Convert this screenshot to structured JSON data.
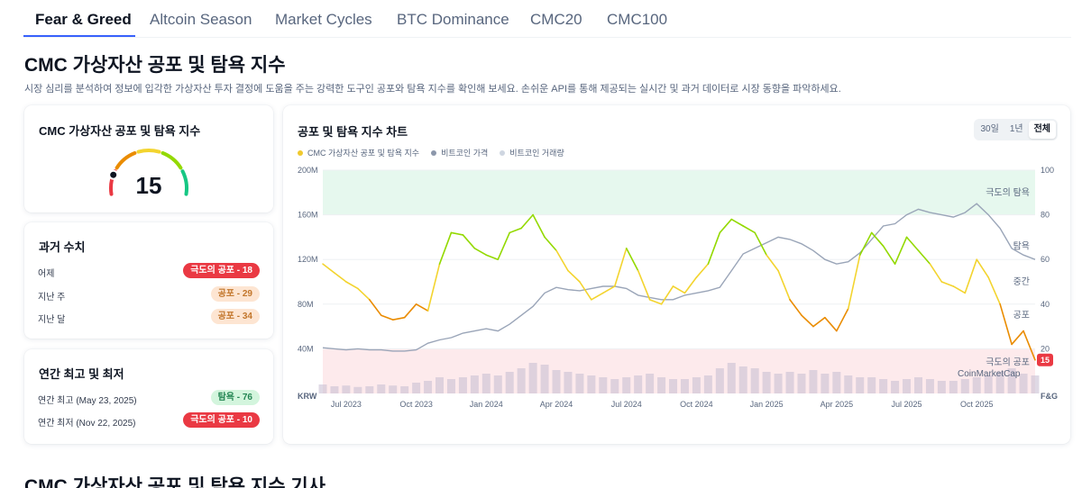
{
  "tabs": [
    "Fear & Greed",
    "Altcoin Season",
    "Market Cycles",
    "BTC Dominance",
    "CMC20",
    "CMC100"
  ],
  "page_title": "CMC 가상자산 공포 및 탐욕 지수",
  "page_description": "시장 심리를 분석하여 정보에 입각한 가상자산 투자 결정에 도움을 주는 강력한 도구인 공포와 탐욕 지수를 확인해 보세요. 손쉬운 API를 통해 제공되는 실시간 및 과거 데이터로 시장 동향을 파악하세요.",
  "gauge_card": {
    "title": "CMC 가상자산 공포 및 탐욕 지수",
    "value": "15",
    "level": 15
  },
  "history_card": {
    "title": "과거 수치",
    "rows": [
      {
        "label": "어제",
        "badge": "극도의 공포 - 18",
        "tone": "red"
      },
      {
        "label": "지난 주",
        "badge": "공포 - 29",
        "tone": "orange"
      },
      {
        "label": "지난 달",
        "badge": "공포 - 34",
        "tone": "orange"
      }
    ]
  },
  "yearly_card": {
    "title": "연간 최고 및 최저",
    "rows": [
      {
        "label": "연간 최고 (May 23, 2025)",
        "badge": "탐욕 - 76",
        "tone": "green"
      },
      {
        "label": "연간 최저 (Nov 22, 2025)",
        "badge": "극도의 공포 - 10",
        "tone": "red"
      }
    ]
  },
  "chart_card": {
    "title": "공포 및 탐욕 지수 차트",
    "ranges": [
      "30일",
      "1년",
      "전체"
    ],
    "active_range": "전체",
    "legend": [
      {
        "label": "CMC 가상자산 공포 및 탐욕 지수",
        "color": "#f0c92e"
      },
      {
        "label": "비트코인 가격",
        "color": "#8c97ab"
      },
      {
        "label": "비트코인 거래량",
        "color": "#cfd6e1"
      }
    ],
    "watermark": "CoinMarketCap"
  },
  "colors": {
    "extreme_fear": "#ea3943",
    "fear": "#ea8c00",
    "neutral": "#f3d42f",
    "greed": "#93d900",
    "extreme_greed": "#16c784",
    "btc_price": "#9aa5b8",
    "volume": "#c9c0d3"
  },
  "chart_data": {
    "type": "line",
    "title": "공포 및 탐욕 지수 차트",
    "x": [
      "2023-06-01",
      "2023-06-15",
      "2023-07-01",
      "2023-07-15",
      "2023-08-01",
      "2023-08-15",
      "2023-09-01",
      "2023-09-15",
      "2023-10-01",
      "2023-10-15",
      "2023-11-01",
      "2023-11-15",
      "2023-12-01",
      "2023-12-15",
      "2024-01-01",
      "2024-01-15",
      "2024-02-01",
      "2024-02-15",
      "2024-03-01",
      "2024-03-15",
      "2024-04-01",
      "2024-04-15",
      "2024-05-01",
      "2024-05-15",
      "2024-06-01",
      "2024-06-15",
      "2024-07-01",
      "2024-07-15",
      "2024-08-01",
      "2024-08-15",
      "2024-09-01",
      "2024-09-15",
      "2024-10-01",
      "2024-10-15",
      "2024-11-01",
      "2024-11-15",
      "2024-12-01",
      "2024-12-15",
      "2025-01-01",
      "2025-01-15",
      "2025-02-01",
      "2025-02-15",
      "2025-03-01",
      "2025-03-15",
      "2025-04-01",
      "2025-04-15",
      "2025-05-01",
      "2025-05-15",
      "2025-06-01",
      "2025-06-15",
      "2025-07-01",
      "2025-07-15",
      "2025-08-01",
      "2025-08-15",
      "2025-09-01",
      "2025-09-15",
      "2025-10-01",
      "2025-10-15",
      "2025-11-01",
      "2025-11-15",
      "2025-12-01",
      "2025-12-15"
    ],
    "x_ticks": [
      "Jul 2023",
      "Oct 2023",
      "Jan 2024",
      "Apr 2024",
      "Jul 2024",
      "Oct 2024",
      "Jan 2025",
      "Apr 2025",
      "Jul 2025",
      "Oct 2025"
    ],
    "series": [
      {
        "name": "CMC 가상자산 공포 및 탐욕 지수",
        "axis": "F&G",
        "values": [
          58,
          54,
          50,
          47,
          42,
          35,
          33,
          34,
          40,
          37,
          58,
          72,
          71,
          65,
          62,
          60,
          72,
          74,
          80,
          70,
          64,
          55,
          50,
          42,
          45,
          48,
          65,
          55,
          42,
          40,
          48,
          45,
          52,
          58,
          72,
          78,
          75,
          72,
          62,
          55,
          42,
          35,
          30,
          34,
          28,
          38,
          62,
          72,
          66,
          58,
          70,
          64,
          58,
          50,
          48,
          45,
          60,
          52,
          40,
          22,
          28,
          15
        ]
      },
      {
        "name": "비트코인 가격",
        "axis": "KRW",
        "values": [
          41,
          40,
          39,
          40,
          39,
          39,
          38,
          38,
          39,
          45,
          48,
          50,
          54,
          56,
          58,
          56,
          62,
          70,
          78,
          90,
          95,
          93,
          92,
          94,
          96,
          96,
          94,
          88,
          86,
          84,
          84,
          88,
          90,
          92,
          95,
          110,
          125,
          130,
          135,
          140,
          138,
          134,
          128,
          120,
          116,
          118,
          126,
          138,
          150,
          152,
          160,
          165,
          162,
          160,
          158,
          162,
          170,
          160,
          148,
          130,
          124,
          120
        ]
      },
      {
        "name": "비트코인 거래량",
        "axis": "volume",
        "values": [
          0.25,
          0.2,
          0.22,
          0.18,
          0.2,
          0.25,
          0.22,
          0.2,
          0.3,
          0.35,
          0.45,
          0.4,
          0.45,
          0.5,
          0.55,
          0.5,
          0.6,
          0.7,
          0.85,
          0.8,
          0.65,
          0.6,
          0.55,
          0.5,
          0.45,
          0.4,
          0.45,
          0.5,
          0.55,
          0.45,
          0.4,
          0.4,
          0.45,
          0.5,
          0.7,
          0.85,
          0.75,
          0.7,
          0.6,
          0.55,
          0.6,
          0.55,
          0.65,
          0.55,
          0.6,
          0.5,
          0.45,
          0.45,
          0.4,
          0.35,
          0.4,
          0.45,
          0.4,
          0.35,
          0.35,
          0.4,
          0.45,
          0.5,
          0.6,
          0.7,
          0.55,
          0.5
        ]
      }
    ],
    "y_left": {
      "label": "KRW",
      "ticks": [
        "200M",
        "160M",
        "120M",
        "80M",
        "40M"
      ],
      "ylim": [
        0,
        200
      ]
    },
    "y_right": {
      "label": "F&G",
      "ticks": [
        "100",
        "80",
        "60",
        "40",
        "20"
      ],
      "ylim": [
        0,
        100
      ]
    },
    "zones": [
      "극도의 탐욕",
      "탐욕",
      "중간",
      "공포",
      "극도의 공포"
    ],
    "current_label": "15"
  },
  "next_section_title": "CMC 가상자산 공포 및 탐욕 지수 기사"
}
